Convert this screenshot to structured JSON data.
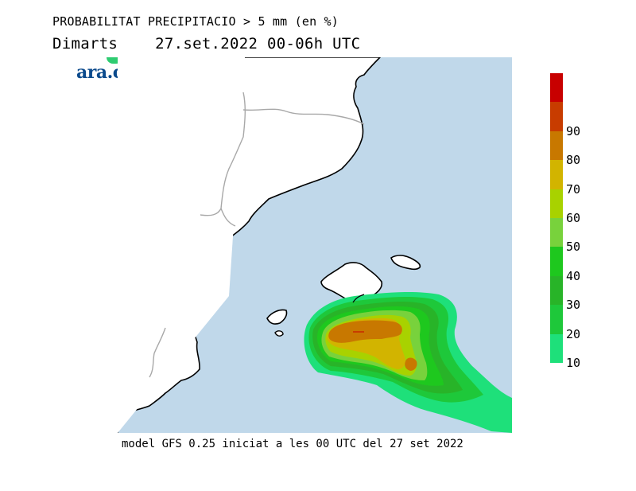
{
  "header": {
    "title": "PROBABILITAT PRECIPITACIO > 5 mm (en %)",
    "subtitle": "Dimarts    27.set.2022 00-06h UTC"
  },
  "logo": {
    "text": "ara.cat",
    "brand_color": "#0b4a8c",
    "accent_color": "#2ecc71"
  },
  "map": {
    "sea_color": "#c0d8ea",
    "land_color": "#ffffff",
    "coast_color": "#000000",
    "border_color": "#a8a8a8"
  },
  "legend": {
    "colorbar_levels": [
      {
        "label": "10",
        "color": "#1ee07a"
      },
      {
        "label": "20",
        "color": "#1ec83a"
      },
      {
        "label": "30",
        "color": "#28b428"
      },
      {
        "label": "40",
        "color": "#1ec81e"
      },
      {
        "label": "50",
        "color": "#78d23c"
      },
      {
        "label": "60",
        "color": "#a8d200"
      },
      {
        "label": "70",
        "color": "#d2b400"
      },
      {
        "label": "80",
        "color": "#c87800"
      },
      {
        "label": "90",
        "color": "#c83c00"
      },
      {
        "label": "",
        "color": "#c80000"
      }
    ]
  },
  "footer": {
    "text": "model GFS 0.25 iniciat a les 00 UTC del 27 set 2022"
  }
}
